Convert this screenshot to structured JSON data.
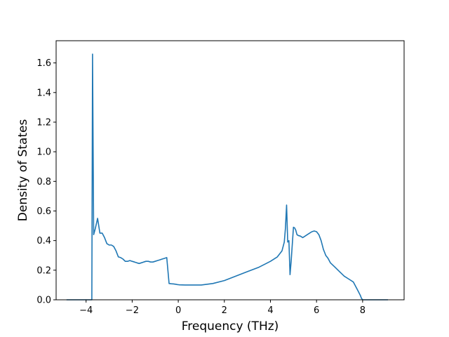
{
  "chart_data": {
    "type": "line",
    "title": "",
    "xlabel": "Frequency (THz)",
    "ylabel": "Density of States",
    "xlim": [
      -5.3,
      9.8
    ],
    "ylim": [
      0.0,
      1.75
    ],
    "xticks": [
      -4,
      -2,
      0,
      2,
      4,
      6,
      8
    ],
    "yticks": [
      0.0,
      0.2,
      0.4,
      0.6,
      0.8,
      1.0,
      1.2,
      1.4,
      1.6
    ],
    "grid": false,
    "line_color": "#1f77b4",
    "series": [
      {
        "x": [
          -4.85,
          -3.75,
          -3.72,
          -3.67,
          -3.6,
          -3.5,
          -3.4,
          -3.3,
          -3.2,
          -3.1,
          -3.0,
          -2.9,
          -2.8,
          -2.7,
          -2.6,
          -2.5,
          -2.4,
          -2.3,
          -2.2,
          -2.1,
          -2.0,
          -1.9,
          -1.8,
          -1.7,
          -1.6,
          -1.5,
          -1.4,
          -1.3,
          -1.2,
          -1.1,
          -1.0,
          -0.9,
          -0.8,
          -0.7,
          -0.6,
          -0.5,
          -0.4,
          -0.3,
          -0.2,
          -0.1,
          -0.05,
          0.0,
          0.05,
          0.3,
          0.6,
          1.0,
          1.5,
          2.0,
          2.5,
          3.0,
          3.5,
          4.0,
          4.3,
          4.5,
          4.6,
          4.65,
          4.7,
          4.75,
          4.8,
          4.85,
          4.9,
          4.95,
          5.0,
          5.05,
          5.1,
          5.15,
          5.2,
          5.3,
          5.4,
          5.5,
          5.6,
          5.7,
          5.8,
          5.9,
          6.0,
          6.1,
          6.2,
          6.3,
          6.35,
          6.4,
          6.45,
          6.5,
          6.6,
          6.8,
          7.0,
          7.2,
          7.4,
          7.6,
          7.7,
          7.8,
          7.9,
          7.95,
          8.0,
          8.1,
          8.5,
          9.1
        ],
        "y": [
          0.0,
          0.0,
          1.66,
          0.44,
          0.48,
          0.55,
          0.45,
          0.45,
          0.42,
          0.38,
          0.37,
          0.37,
          0.36,
          0.33,
          0.29,
          0.285,
          0.275,
          0.26,
          0.26,
          0.265,
          0.26,
          0.255,
          0.25,
          0.245,
          0.25,
          0.255,
          0.26,
          0.26,
          0.255,
          0.255,
          0.26,
          0.265,
          0.27,
          0.275,
          0.28,
          0.285,
          0.11,
          0.108,
          0.107,
          0.105,
          0.103,
          0.102,
          0.101,
          0.1,
          0.1,
          0.1,
          0.11,
          0.13,
          0.16,
          0.19,
          0.22,
          0.26,
          0.29,
          0.33,
          0.39,
          0.48,
          0.64,
          0.39,
          0.4,
          0.17,
          0.26,
          0.38,
          0.49,
          0.485,
          0.47,
          0.44,
          0.435,
          0.43,
          0.42,
          0.43,
          0.44,
          0.45,
          0.46,
          0.465,
          0.46,
          0.44,
          0.4,
          0.34,
          0.32,
          0.3,
          0.29,
          0.28,
          0.25,
          0.22,
          0.19,
          0.16,
          0.14,
          0.12,
          0.09,
          0.06,
          0.03,
          0.01,
          0.0,
          0.0,
          0.0,
          0.0
        ]
      }
    ]
  }
}
